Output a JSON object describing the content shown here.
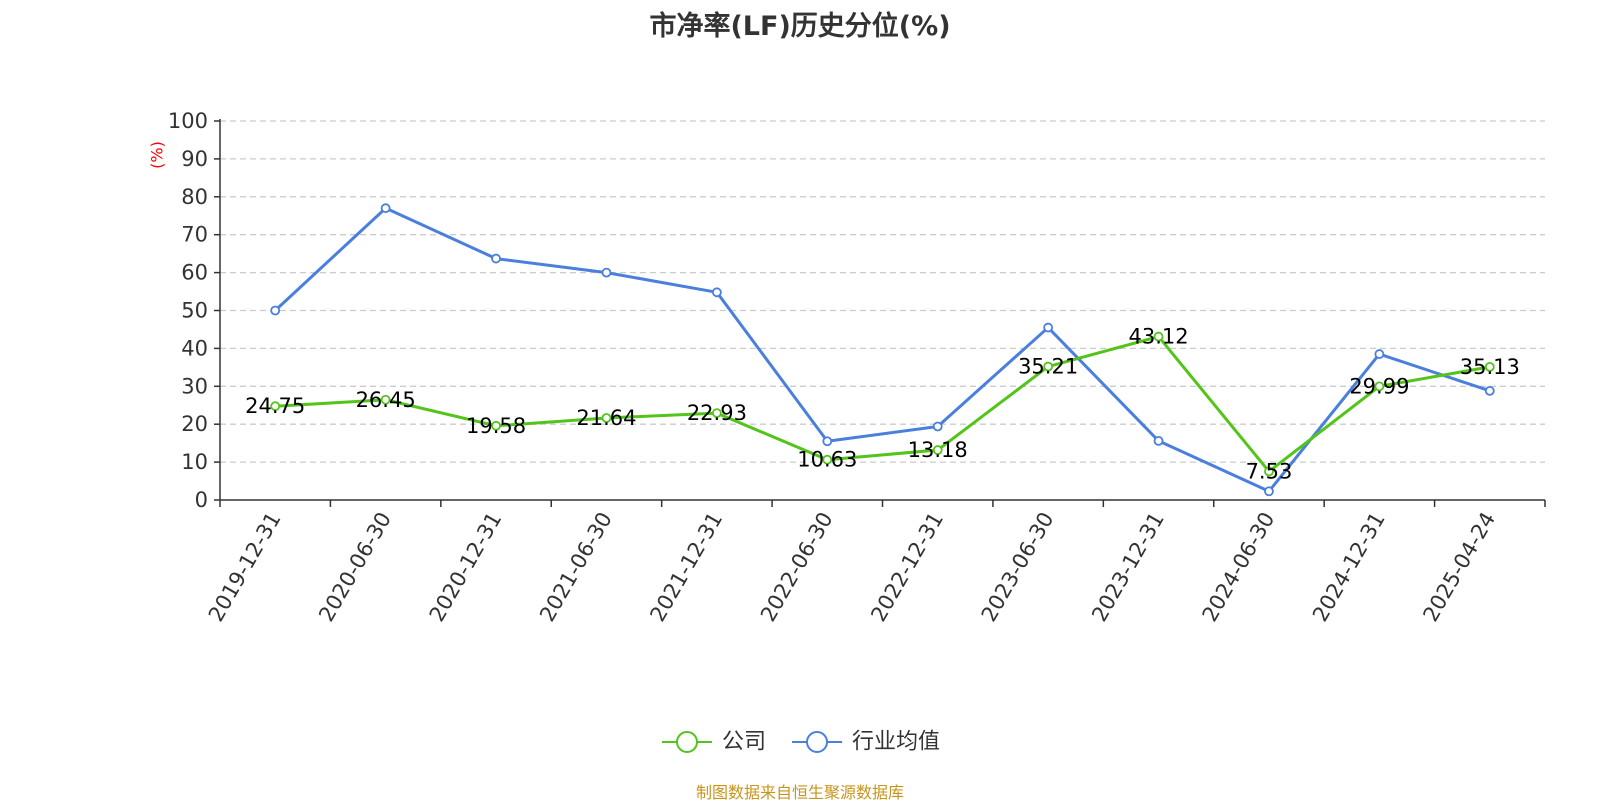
{
  "chart_data": {
    "type": "line",
    "title": "市净率(LF)历史分位(%)",
    "ylabel": "(%)",
    "ylim": [
      0,
      100
    ],
    "yticks": [
      0,
      10,
      20,
      30,
      40,
      50,
      60,
      70,
      80,
      90,
      100
    ],
    "categories": [
      "2019-12-31",
      "2020-06-30",
      "2020-12-31",
      "2021-06-30",
      "2021-12-31",
      "2022-06-30",
      "2022-12-31",
      "2023-06-30",
      "2023-12-31",
      "2024-06-30",
      "2024-12-31",
      "2025-04-24"
    ],
    "series": [
      {
        "name": "公司",
        "color": "#52c41a",
        "values": [
          24.75,
          26.45,
          19.58,
          21.64,
          22.93,
          10.63,
          13.18,
          35.21,
          43.12,
          7.53,
          29.99,
          35.13
        ],
        "show_labels": true
      },
      {
        "name": "行业均值",
        "color": "#4a7fde",
        "values": [
          50,
          77,
          63.7,
          60,
          54.8,
          15.5,
          19.4,
          45.5,
          15.6,
          2.3,
          38.5,
          28.8
        ],
        "show_labels": false
      }
    ],
    "grid": true,
    "legend": "bottom-center",
    "unit_color": "#ff0000"
  },
  "source": "制图数据来自恒生聚源数据库"
}
